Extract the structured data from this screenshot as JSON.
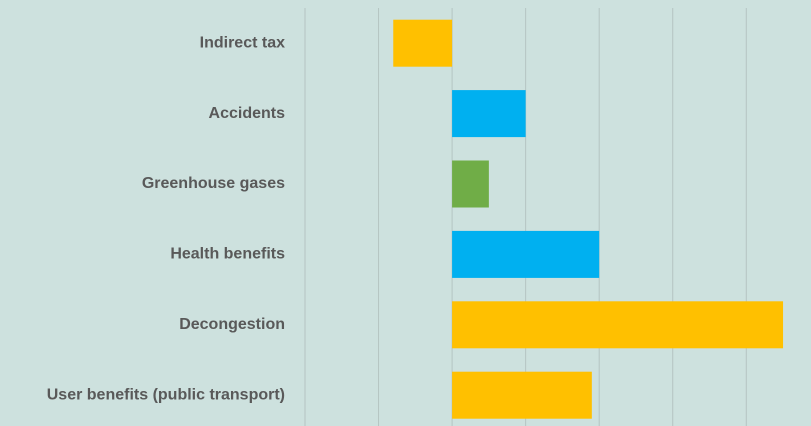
{
  "chart_data": {
    "type": "barh",
    "categories": [
      "Indirect tax",
      "Accidents",
      "Greenhouse gases",
      "Health benefits",
      "Decongestion",
      "User benefits (public transport)"
    ],
    "values": [
      -0.8,
      1.0,
      0.5,
      2.0,
      4.5,
      1.9
    ],
    "colors": [
      "#FFC000",
      "#00B0F0",
      "#70AD47",
      "#00B0F0",
      "#FFC000",
      "#FFC000"
    ],
    "xlim": [
      -2,
      4.88
    ],
    "xticks": [
      -2,
      -1,
      0,
      1,
      2,
      3,
      4
    ],
    "grid": true
  }
}
